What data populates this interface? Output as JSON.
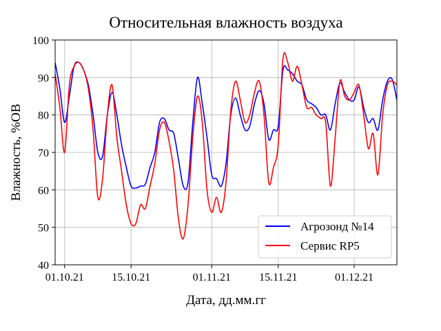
{
  "chart_data": {
    "type": "line",
    "title": "Относительная влажность воздуха",
    "xlabel": "Дата, дд.мм.гг",
    "ylabel": "Влажность, %OB",
    "ylim": [
      40,
      100
    ],
    "yticks": [
      40,
      50,
      60,
      70,
      80,
      90,
      100
    ],
    "xticks": [
      {
        "date": "2021-10-01",
        "label": "01.10.21"
      },
      {
        "date": "2021-10-15",
        "label": "15.10.21"
      },
      {
        "date": "2021-11-01",
        "label": "01.11.21"
      },
      {
        "date": "2021-11-15",
        "label": "15.11.21"
      },
      {
        "date": "2021-12-01",
        "label": "01.12.21"
      }
    ],
    "xlim": [
      "2021-09-29",
      "2021-12-10"
    ],
    "grid": true,
    "legend_position": "bottom-right",
    "series": [
      {
        "name": "Агрозонд №14",
        "color": "#0000ff",
        "points": [
          [
            "2021-09-29",
            94
          ],
          [
            "2021-09-30",
            87
          ],
          [
            "2021-10-01",
            78
          ],
          [
            "2021-10-02",
            85
          ],
          [
            "2021-10-03",
            93
          ],
          [
            "2021-10-04",
            94
          ],
          [
            "2021-10-05",
            92
          ],
          [
            "2021-10-06",
            88
          ],
          [
            "2021-10-07",
            80
          ],
          [
            "2021-10-08",
            70
          ],
          [
            "2021-10-09",
            69
          ],
          [
            "2021-10-10",
            80
          ],
          [
            "2021-10-11",
            86
          ],
          [
            "2021-10-12",
            80
          ],
          [
            "2021-10-13",
            72
          ],
          [
            "2021-10-14",
            66
          ],
          [
            "2021-10-15",
            61
          ],
          [
            "2021-10-16",
            60.5
          ],
          [
            "2021-10-17",
            61
          ],
          [
            "2021-10-18",
            61.5
          ],
          [
            "2021-10-19",
            66
          ],
          [
            "2021-10-20",
            70
          ],
          [
            "2021-10-21",
            78
          ],
          [
            "2021-10-22",
            79
          ],
          [
            "2021-10-23",
            76
          ],
          [
            "2021-10-24",
            75
          ],
          [
            "2021-10-25",
            68
          ],
          [
            "2021-10-26",
            61
          ],
          [
            "2021-10-27",
            62
          ],
          [
            "2021-10-28",
            78
          ],
          [
            "2021-10-29",
            90
          ],
          [
            "2021-10-30",
            83
          ],
          [
            "2021-10-31",
            74
          ],
          [
            "2021-11-01",
            64
          ],
          [
            "2021-11-02",
            63
          ],
          [
            "2021-11-03",
            61
          ],
          [
            "2021-11-04",
            67
          ],
          [
            "2021-11-05",
            80
          ],
          [
            "2021-11-06",
            84.5
          ],
          [
            "2021-11-07",
            80
          ],
          [
            "2021-11-08",
            76
          ],
          [
            "2021-11-09",
            77
          ],
          [
            "2021-11-10",
            83
          ],
          [
            "2021-11-11",
            86.5
          ],
          [
            "2021-11-12",
            83
          ],
          [
            "2021-11-13",
            73.5
          ],
          [
            "2021-11-14",
            76
          ],
          [
            "2021-11-15",
            77
          ],
          [
            "2021-11-16",
            92
          ],
          [
            "2021-11-17",
            92
          ],
          [
            "2021-11-18",
            91
          ],
          [
            "2021-11-19",
            89
          ],
          [
            "2021-11-20",
            88
          ],
          [
            "2021-11-21",
            84
          ],
          [
            "2021-11-22",
            83
          ],
          [
            "2021-11-23",
            82
          ],
          [
            "2021-11-24",
            80
          ],
          [
            "2021-11-25",
            80
          ],
          [
            "2021-11-26",
            76
          ],
          [
            "2021-11-27",
            83
          ],
          [
            "2021-11-28",
            88.5
          ],
          [
            "2021-11-29",
            86
          ],
          [
            "2021-11-30",
            84
          ],
          [
            "2021-12-01",
            84
          ],
          [
            "2021-12-02",
            87.5
          ],
          [
            "2021-12-03",
            82
          ],
          [
            "2021-12-04",
            78
          ],
          [
            "2021-12-05",
            79
          ],
          [
            "2021-12-06",
            76
          ],
          [
            "2021-12-07",
            84
          ],
          [
            "2021-12-08",
            89
          ],
          [
            "2021-12-09",
            89.5
          ],
          [
            "2021-12-10",
            84
          ]
        ]
      },
      {
        "name": "Сервис RP5",
        "color": "#ff0000",
        "points": [
          [
            "2021-09-29",
            91
          ],
          [
            "2021-09-30",
            82
          ],
          [
            "2021-10-01",
            70
          ],
          [
            "2021-10-02",
            88
          ],
          [
            "2021-10-03",
            93
          ],
          [
            "2021-10-04",
            94
          ],
          [
            "2021-10-05",
            92
          ],
          [
            "2021-10-06",
            87
          ],
          [
            "2021-10-07",
            76
          ],
          [
            "2021-10-08",
            58
          ],
          [
            "2021-10-09",
            63
          ],
          [
            "2021-10-10",
            80
          ],
          [
            "2021-10-11",
            88
          ],
          [
            "2021-10-12",
            74
          ],
          [
            "2021-10-13",
            65
          ],
          [
            "2021-10-14",
            56
          ],
          [
            "2021-10-15",
            51
          ],
          [
            "2021-10-16",
            51
          ],
          [
            "2021-10-17",
            56
          ],
          [
            "2021-10-18",
            55
          ],
          [
            "2021-10-19",
            61
          ],
          [
            "2021-10-20",
            67
          ],
          [
            "2021-10-21",
            76
          ],
          [
            "2021-10-22",
            78
          ],
          [
            "2021-10-23",
            73
          ],
          [
            "2021-10-24",
            65
          ],
          [
            "2021-10-25",
            52
          ],
          [
            "2021-10-26",
            47
          ],
          [
            "2021-10-27",
            56
          ],
          [
            "2021-10-28",
            74
          ],
          [
            "2021-10-29",
            85
          ],
          [
            "2021-10-30",
            78
          ],
          [
            "2021-10-31",
            60
          ],
          [
            "2021-11-01",
            54
          ],
          [
            "2021-11-02",
            58
          ],
          [
            "2021-11-03",
            54
          ],
          [
            "2021-11-04",
            62
          ],
          [
            "2021-11-05",
            81
          ],
          [
            "2021-11-06",
            89
          ],
          [
            "2021-11-07",
            84
          ],
          [
            "2021-11-08",
            78
          ],
          [
            "2021-11-09",
            80
          ],
          [
            "2021-11-10",
            86
          ],
          [
            "2021-11-11",
            89
          ],
          [
            "2021-11-12",
            80
          ],
          [
            "2021-11-13",
            62
          ],
          [
            "2021-11-14",
            66
          ],
          [
            "2021-11-15",
            72
          ],
          [
            "2021-11-16",
            95
          ],
          [
            "2021-11-17",
            94
          ],
          [
            "2021-11-18",
            89
          ],
          [
            "2021-11-19",
            93
          ],
          [
            "2021-11-20",
            88
          ],
          [
            "2021-11-21",
            82
          ],
          [
            "2021-11-22",
            82
          ],
          [
            "2021-11-23",
            80
          ],
          [
            "2021-11-24",
            79
          ],
          [
            "2021-11-25",
            78
          ],
          [
            "2021-11-26",
            61
          ],
          [
            "2021-11-27",
            74
          ],
          [
            "2021-11-28",
            89
          ],
          [
            "2021-11-29",
            85
          ],
          [
            "2021-11-30",
            84
          ],
          [
            "2021-12-01",
            86
          ],
          [
            "2021-12-02",
            88
          ],
          [
            "2021-12-03",
            80
          ],
          [
            "2021-12-04",
            71
          ],
          [
            "2021-12-05",
            75
          ],
          [
            "2021-12-06",
            64
          ],
          [
            "2021-12-07",
            80
          ],
          [
            "2021-12-08",
            88
          ],
          [
            "2021-12-09",
            89
          ],
          [
            "2021-12-10",
            88
          ]
        ]
      }
    ]
  }
}
